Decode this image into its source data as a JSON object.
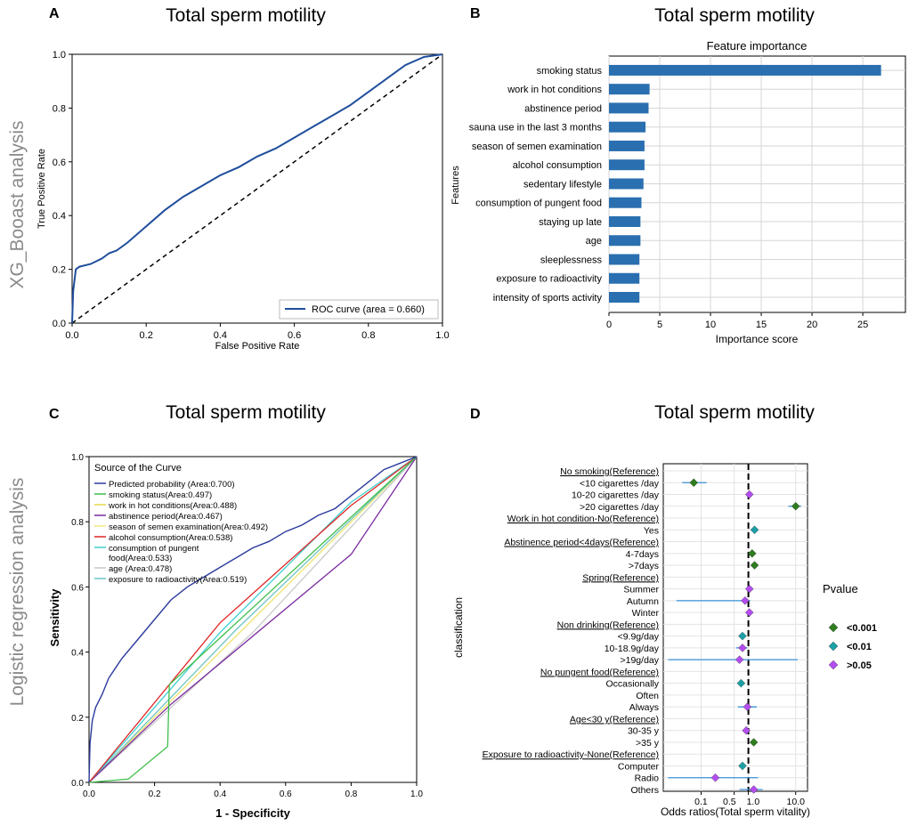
{
  "colors": {
    "roc": "#1f4e9c",
    "bar": "#2a6fb0",
    "p001": "#2e7d1f",
    "p01": "#1aa0a6",
    "p05": "#b44df0",
    "ci": "#3a8fd6"
  },
  "row_labels": {
    "top": "XG_Booast analysis",
    "bottom": "Logistic regression analysis"
  },
  "panels": {
    "A": {
      "letter": "A",
      "title": "Total sperm motility"
    },
    "B": {
      "letter": "B",
      "title": "Total sperm motility"
    },
    "C": {
      "letter": "C",
      "title": "Total sperm motility"
    },
    "D": {
      "letter": "D",
      "title": "Total sperm motility"
    }
  },
  "chart_data": [
    {
      "id": "A",
      "type": "line",
      "xlabel": "False Positive Rate",
      "ylabel": "True Positive Rate",
      "xlim": [
        0,
        1
      ],
      "ylim": [
        0,
        1
      ],
      "xticks": [
        "0.0",
        "0.2",
        "0.4",
        "0.6",
        "0.8",
        "1.0"
      ],
      "yticks": [
        "0.0",
        "0.2",
        "0.4",
        "0.6",
        "0.8",
        "1.0"
      ],
      "legend": "ROC curve (area = 0.660)",
      "legend_position": "bottom-right",
      "series": [
        {
          "name": "ROC curve (area = 0.660)",
          "x": [
            0,
            0.003,
            0.01,
            0.02,
            0.05,
            0.08,
            0.1,
            0.12,
            0.15,
            0.2,
            0.25,
            0.3,
            0.35,
            0.4,
            0.45,
            0.5,
            0.55,
            0.6,
            0.65,
            0.7,
            0.75,
            0.8,
            0.85,
            0.9,
            0.95,
            1
          ],
          "y": [
            0,
            0.12,
            0.2,
            0.21,
            0.22,
            0.24,
            0.26,
            0.27,
            0.3,
            0.36,
            0.42,
            0.47,
            0.51,
            0.55,
            0.58,
            0.62,
            0.65,
            0.69,
            0.73,
            0.77,
            0.81,
            0.86,
            0.91,
            0.96,
            0.99,
            1
          ]
        },
        {
          "name": "chance",
          "x": [
            0,
            1
          ],
          "y": [
            0,
            1
          ]
        }
      ]
    },
    {
      "id": "B",
      "type": "bar",
      "title": "Feature importance",
      "xlabel": "Importance score",
      "ylabel": "Features",
      "xlim": [
        0,
        29.2
      ],
      "xticks": [
        0,
        5,
        10,
        15,
        20,
        25
      ],
      "categories": [
        "smoking status",
        "work in hot conditions",
        "abstinence period",
        "sauna use in the last 3 months",
        "season of semen examination",
        "alcohol consumption",
        "sedentary lifestyle",
        "consumption of pungent food",
        "staying up late",
        "age",
        "sleeplessness",
        "exposure to radioactivity",
        "intensity of sports activity"
      ],
      "values": [
        26.8,
        4.0,
        3.9,
        3.6,
        3.5,
        3.5,
        3.4,
        3.2,
        3.1,
        3.1,
        3.0,
        3.0,
        3.0
      ]
    },
    {
      "id": "C",
      "type": "line",
      "xlabel": "1 - Specificity",
      "ylabel": "Sensitivity",
      "xlim": [
        0,
        1
      ],
      "ylim": [
        0,
        1
      ],
      "xticks": [
        "0.0",
        "0.2",
        "0.4",
        "0.6",
        "0.8",
        "1.0"
      ],
      "yticks": [
        "0.0",
        "0.2",
        "0.4",
        "0.6",
        "0.8",
        "1.0"
      ],
      "legend_title": "Source of the Curve",
      "legend_position": "top-left",
      "series": [
        {
          "name": "Predicted probability (Area:0.700)",
          "color": "#2b3a9c",
          "x": [
            0,
            0.003,
            0.01,
            0.02,
            0.04,
            0.06,
            0.1,
            0.15,
            0.2,
            0.25,
            0.3,
            0.35,
            0.4,
            0.45,
            0.5,
            0.55,
            0.6,
            0.65,
            0.7,
            0.75,
            0.8,
            0.85,
            0.9,
            0.95,
            1
          ],
          "y": [
            0,
            0.12,
            0.19,
            0.23,
            0.27,
            0.32,
            0.38,
            0.44,
            0.5,
            0.56,
            0.6,
            0.63,
            0.66,
            0.69,
            0.72,
            0.74,
            0.77,
            0.79,
            0.82,
            0.84,
            0.88,
            0.92,
            0.96,
            0.98,
            1
          ]
        },
        {
          "name": "smoking status(Area:0.497)",
          "color": "#3fbf4a",
          "x": [
            0,
            0.12,
            0.24,
            0.245,
            1
          ],
          "y": [
            0,
            0.01,
            0.11,
            0.3,
            1
          ]
        },
        {
          "name": "work in hot conditions(Area:0.488)",
          "color": "#e6d84a",
          "x": [
            0,
            1
          ],
          "y": [
            0,
            1
          ]
        },
        {
          "name": "abstinence period(Area:0.467)",
          "color": "#7a2aa0",
          "x": [
            0,
            0.25,
            0.8,
            1
          ],
          "y": [
            0,
            0.24,
            0.7,
            1
          ]
        },
        {
          "name": "season of semen examination(Area:0.492)",
          "color": "#f2e880",
          "x": [
            0,
            0.5,
            1
          ],
          "y": [
            0,
            0.5,
            1
          ]
        },
        {
          "name": "alcohol consumption(Area:0.538)",
          "color": "#e02424",
          "x": [
            0,
            0.4,
            0.8,
            1
          ],
          "y": [
            0,
            0.49,
            0.85,
            1
          ]
        },
        {
          "name": "consumption of pungent food(Area:0.533)",
          "color": "#3fcfcf",
          "x": [
            0,
            0.4,
            0.8,
            1
          ],
          "y": [
            0,
            0.46,
            0.86,
            1
          ]
        },
        {
          "name": "age (Area:0.478)",
          "color": "#c8c8c8",
          "x": [
            0,
            0.5,
            1
          ],
          "y": [
            0,
            0.46,
            1
          ]
        },
        {
          "name": "exposure to radioactivity(Area:0.519)",
          "color": "#6ec4c4",
          "x": [
            0,
            0.45,
            1
          ],
          "y": [
            0,
            0.47,
            1
          ]
        }
      ]
    },
    {
      "id": "D",
      "type": "scatter",
      "subtype": "forest",
      "xlabel": "Odds ratios(Total sperm vitality)",
      "ylabel": "classification",
      "xscale": "log10",
      "xlim_log10": [
        -1.8,
        1.25
      ],
      "xticks": [
        {
          "value": 0.1,
          "label": "0.1"
        },
        {
          "value": 0.5,
          "label": "0.5"
        },
        {
          "value": 1.0,
          "label": "1.0"
        },
        {
          "value": 10.0,
          "label": "10.0"
        }
      ],
      "reference_line": 1,
      "legend_title": "Pvalue",
      "legend": [
        {
          "label": "<0.001",
          "group": "p001"
        },
        {
          "label": "<0.01",
          "group": "p01"
        },
        {
          "label": ">0.05",
          "group": "p05"
        }
      ],
      "rows": [
        {
          "label": "No smoking(Reference)",
          "ref": true
        },
        {
          "label": "<10 cigarettes /day",
          "or": 0.07,
          "lo": 0.04,
          "hi": 0.13,
          "p": "p001"
        },
        {
          "label": "10-20 cigarettes /day",
          "or": 1.05,
          "lo": 0.9,
          "hi": 1.2,
          "p": "p05"
        },
        {
          "label": ">20 cigarettes /day",
          "or": 10.0,
          "lo": 7.0,
          "hi": 13.0,
          "p": "p001"
        },
        {
          "label": "Work in hot condition-No(Reference)",
          "ref": true
        },
        {
          "label": "Yes",
          "or": 1.35,
          "lo": 1.15,
          "hi": 1.6,
          "p": "p01"
        },
        {
          "label": "Abstinence period<4days(Reference)",
          "ref": true
        },
        {
          "label": "4-7days",
          "or": 1.2,
          "lo": 1.05,
          "hi": 1.35,
          "p": "p001"
        },
        {
          "label": ">7days",
          "or": 1.35,
          "lo": 1.2,
          "hi": 1.5,
          "p": "p001"
        },
        {
          "label": "Spring(Reference)",
          "ref": true
        },
        {
          "label": "Summer",
          "or": 1.05,
          "lo": 0.9,
          "hi": 1.2,
          "p": "p05"
        },
        {
          "label": "Autumn",
          "or": 0.85,
          "lo": 0.03,
          "hi": 1.1,
          "p": "p05"
        },
        {
          "label": "Winter",
          "or": 1.05,
          "lo": 0.95,
          "hi": 1.15,
          "p": "p05"
        },
        {
          "label": "Non drinking(Reference)",
          "ref": true
        },
        {
          "label": "<9.9g/day",
          "or": 0.75,
          "lo": 0.65,
          "hi": 0.85,
          "p": "p01"
        },
        {
          "label": "10-18.9g/day",
          "or": 0.75,
          "lo": 0.55,
          "hi": 0.95,
          "p": "p05"
        },
        {
          "label": ">19g/day",
          "or": 0.65,
          "lo": 0.02,
          "hi": 11.0,
          "p": "p05"
        },
        {
          "label": "No pungent food(Reference)",
          "ref": true
        },
        {
          "label": "Occasionally",
          "or": 0.7,
          "lo": 0.62,
          "hi": 0.8,
          "p": "p01"
        },
        {
          "label": "Often"
        },
        {
          "label": "Always",
          "or": 0.95,
          "lo": 0.6,
          "hi": 1.5,
          "p": "p05"
        },
        {
          "label": "Age<30 y(Reference)",
          "ref": true
        },
        {
          "label": "30-35 y",
          "or": 0.9,
          "lo": 0.8,
          "hi": 1.0,
          "p": "p05"
        },
        {
          "label": ">35 y",
          "or": 1.3,
          "lo": 1.15,
          "hi": 1.45,
          "p": "p001"
        },
        {
          "label": "Exposure to radioactivity-None(Reference)",
          "ref": true
        },
        {
          "label": "Computer",
          "or": 0.75,
          "lo": 0.65,
          "hi": 0.85,
          "p": "p01"
        },
        {
          "label": "Radio",
          "or": 0.2,
          "lo": 0.02,
          "hi": 1.6,
          "p": "p05"
        },
        {
          "label": "Others",
          "or": 1.3,
          "lo": 0.65,
          "hi": 2.0,
          "p": "p05"
        }
      ]
    }
  ]
}
